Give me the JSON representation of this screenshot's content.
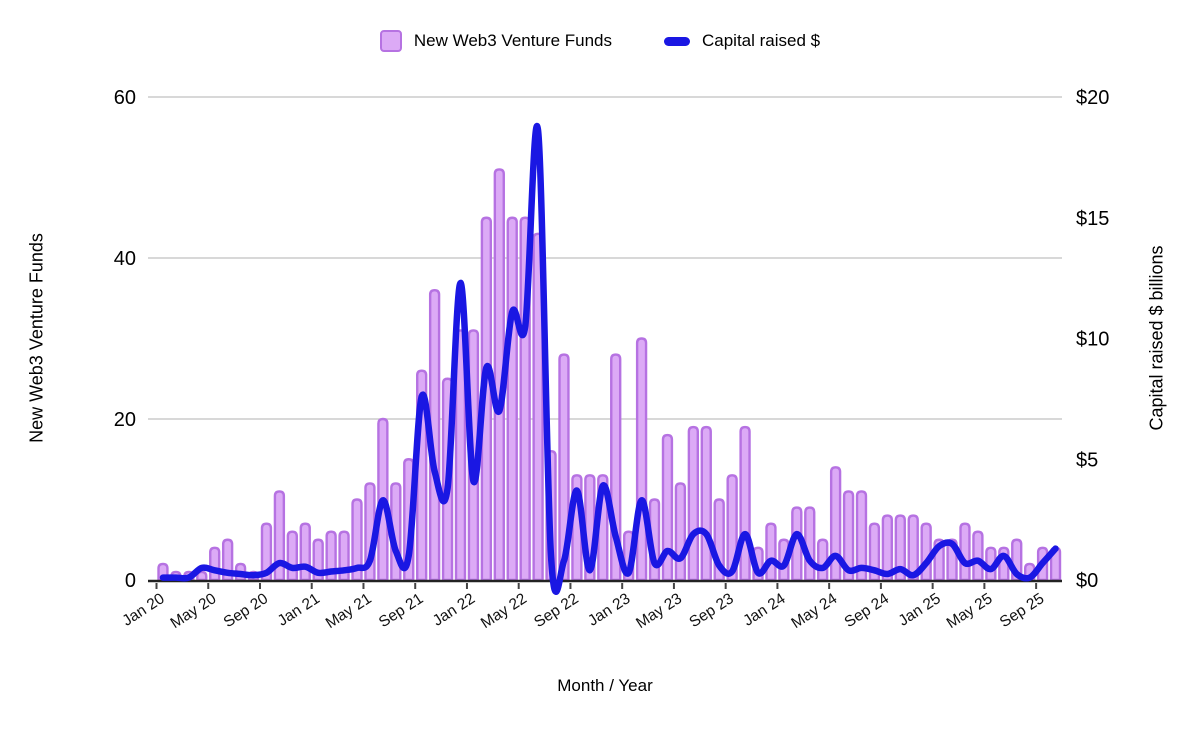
{
  "legend": {
    "bars_label": "New Web3 Venture Funds",
    "line_label": "Capital raised $"
  },
  "axes": {
    "left": {
      "title": "New Web3 Venture Funds",
      "ticks": [
        "0",
        "20",
        "40",
        "60"
      ],
      "max": 60
    },
    "right": {
      "title": "Capital raised $ billions",
      "ticks": [
        "$0",
        "$5",
        "$10",
        "$15",
        "$20"
      ],
      "max": 20
    },
    "x": {
      "title": "Month / Year",
      "tick_labels": [
        "Jan 20",
        "May 20",
        "Sep 20",
        "Jan 21",
        "May 21",
        "Sep 21",
        "Jan 22",
        "May 22",
        "Sep 22",
        "Jan 23",
        "May 23",
        "Sep 23",
        "Jan 24",
        "May 24",
        "Sep 24",
        "Jan 25",
        "May 25",
        "Sep 25"
      ]
    }
  },
  "colors": {
    "bar_fill": "#dcaaf6",
    "bar_stroke": "#b672e2",
    "line": "#1a17e3",
    "grid": "#cccccc",
    "axis_line": "#222222",
    "text": "#000000",
    "x_label_text": "#111111"
  },
  "chart_data": {
    "type": "combo",
    "title": "",
    "xlabel": "Month / Year",
    "ylabel_left": "New Web3 Venture Funds",
    "ylabel_right": "Capital raised $ billions",
    "ylim_left": [
      0,
      60
    ],
    "ylim_right": [
      0,
      20
    ],
    "grid": "horizontal",
    "legend_position": "top",
    "categories": [
      "Jan 20",
      "Feb 20",
      "Mar 20",
      "Apr 20",
      "May 20",
      "Jun 20",
      "Jul 20",
      "Aug 20",
      "Sep 20",
      "Oct 20",
      "Nov 20",
      "Dec 20",
      "Jan 21",
      "Feb 21",
      "Mar 21",
      "Apr 21",
      "May 21",
      "Jun 21",
      "Jul 21",
      "Aug 21",
      "Sep 21",
      "Oct 21",
      "Nov 21",
      "Dec 21",
      "Jan 22",
      "Feb 22",
      "Mar 22",
      "Apr 22",
      "May 22",
      "Jun 22",
      "Jul 22",
      "Aug 22",
      "Sep 22",
      "Oct 22",
      "Nov 22",
      "Dec 22",
      "Jan 23",
      "Feb 23",
      "Mar 23",
      "Apr 23",
      "May 23",
      "Jun 23",
      "Jul 23",
      "Aug 23",
      "Sep 23",
      "Oct 23",
      "Nov 23",
      "Dec 23",
      "Jan 24",
      "Feb 24",
      "Mar 24",
      "Apr 24",
      "May 24",
      "Jun 24",
      "Jul 24",
      "Aug 24",
      "Sep 24",
      "Oct 24",
      "Nov 24",
      "Dec 24",
      "Jan 25",
      "Feb 25",
      "Mar 25",
      "Apr 25",
      "May 25",
      "Jun 25",
      "Jul 25",
      "Aug 25",
      "Sep 25",
      "Oct 25"
    ],
    "series": [
      {
        "name": "New Web3 Venture Funds",
        "type": "bar",
        "axis": "left",
        "values": [
          2,
          1,
          1,
          1,
          4,
          5,
          2,
          1,
          7,
          11,
          6,
          7,
          5,
          6,
          6,
          10,
          12,
          20,
          12,
          15,
          26,
          36,
          25,
          31,
          31,
          45,
          51,
          45,
          45,
          43,
          16,
          28,
          13,
          13,
          13,
          28,
          6,
          30,
          10,
          18,
          12,
          19,
          19,
          10,
          13,
          19,
          4,
          7,
          5,
          9,
          9,
          5,
          14,
          11,
          11,
          7,
          8,
          8,
          8,
          7,
          5,
          5,
          7,
          6,
          4,
          4,
          5,
          2,
          4,
          4
        ]
      },
      {
        "name": "Capital raised $",
        "type": "line",
        "axis": "right",
        "unit": "billions USD",
        "values": [
          0.1,
          0.1,
          0.1,
          0.5,
          0.4,
          0.3,
          0.25,
          0.2,
          0.3,
          0.7,
          0.5,
          0.55,
          0.3,
          0.35,
          0.4,
          0.5,
          0.8,
          3.3,
          1.2,
          1.0,
          7.6,
          4.5,
          3.8,
          12.3,
          4.1,
          8.8,
          7.0,
          11.1,
          10.5,
          18.6,
          1.0,
          0.8,
          3.7,
          0.4,
          3.9,
          1.8,
          0.3,
          3.3,
          0.7,
          1.2,
          0.9,
          1.9,
          1.9,
          0.6,
          0.35,
          1.9,
          0.3,
          0.8,
          0.6,
          1.9,
          0.8,
          0.5,
          1.0,
          0.4,
          0.5,
          0.4,
          0.25,
          0.45,
          0.2,
          0.7,
          1.4,
          1.5,
          0.7,
          0.8,
          0.45,
          1.0,
          0.25,
          0.1,
          0.7,
          1.3
        ]
      }
    ]
  }
}
